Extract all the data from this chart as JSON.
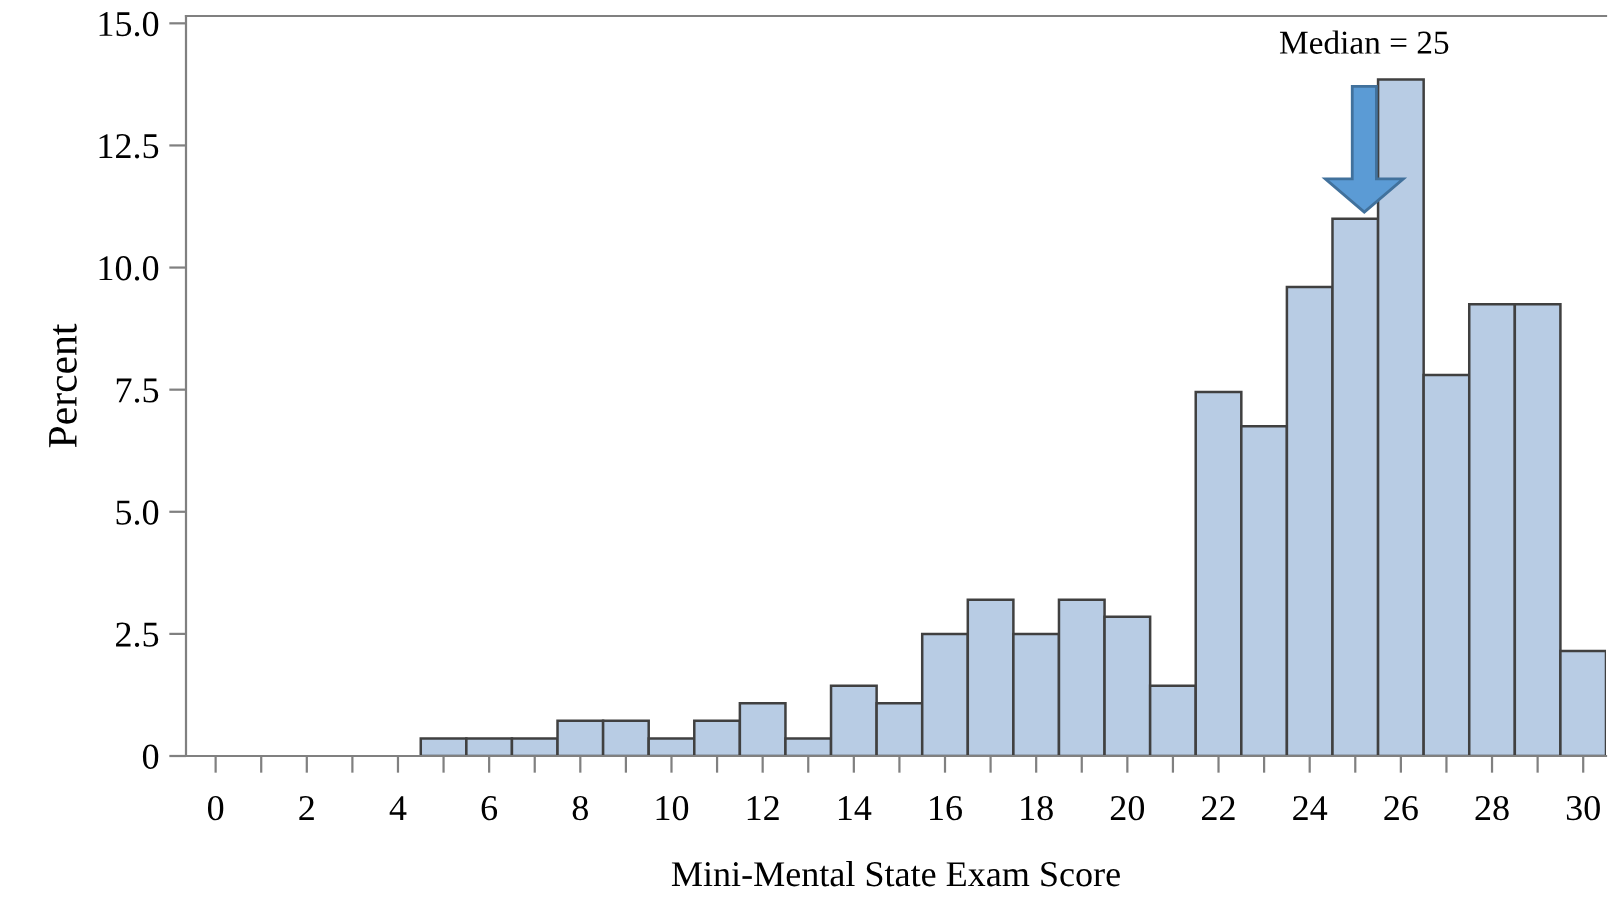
{
  "chart_data": {
    "type": "histogram",
    "xlabel": "Mini-Mental State Exam Score",
    "ylabel": "Percent",
    "bins": [
      4.5,
      5.5,
      6.5,
      7.5,
      8.5,
      9.5,
      10.5,
      11.5,
      12.5,
      13.5,
      14.5,
      15.5,
      16.5,
      17.5,
      18.5,
      19.5,
      20.5,
      21.5,
      22.5,
      23.5,
      24.5,
      25.5,
      26.5,
      27.5,
      28.5,
      29.5,
      30.5
    ],
    "values": [
      0.36,
      0.36,
      0.36,
      0.72,
      0.72,
      0.36,
      0.72,
      1.08,
      0.36,
      1.44,
      1.08,
      2.5,
      3.2,
      2.5,
      3.2,
      2.85,
      1.44,
      7.45,
      6.75,
      9.6,
      11.0,
      13.85,
      7.8,
      9.25,
      9.25,
      2.15
    ],
    "color": "#b8cce4",
    "xlim": [
      -0.65,
      30.5
    ],
    "ylim": [
      0,
      15.15
    ],
    "xticks": [
      0,
      {
        "value": 1,
        "label": null
      },
      2,
      {
        "value": 3,
        "label": null
      },
      4,
      {
        "value": 5,
        "label": null
      },
      6,
      {
        "value": 7,
        "label": null
      },
      8,
      {
        "value": 9,
        "label": null
      },
      10,
      {
        "value": 11,
        "label": null
      },
      12,
      {
        "value": 13,
        "label": null
      },
      14,
      {
        "value": 15,
        "label": null
      },
      16,
      {
        "value": 17,
        "label": null
      },
      18,
      {
        "value": 19,
        "label": null
      },
      20,
      {
        "value": 21,
        "label": null
      },
      22,
      {
        "value": 23,
        "label": null
      },
      24,
      {
        "value": 25,
        "label": null
      },
      26,
      {
        "value": 27,
        "label": null
      },
      28,
      {
        "value": 29,
        "label": null
      },
      30
    ],
    "yticks": [
      0,
      {
        "value": 2.5,
        "label": "2.5"
      },
      {
        "value": 5,
        "label": "5.0"
      },
      {
        "value": 7.5,
        "label": "7.5"
      },
      {
        "value": 10,
        "label": "10.0"
      },
      {
        "value": 12.5,
        "label": "12.5"
      },
      {
        "value": 15,
        "label": "15.0"
      }
    ],
    "annotations": [
      "Median = 25"
    ],
    "grid": false
  }
}
